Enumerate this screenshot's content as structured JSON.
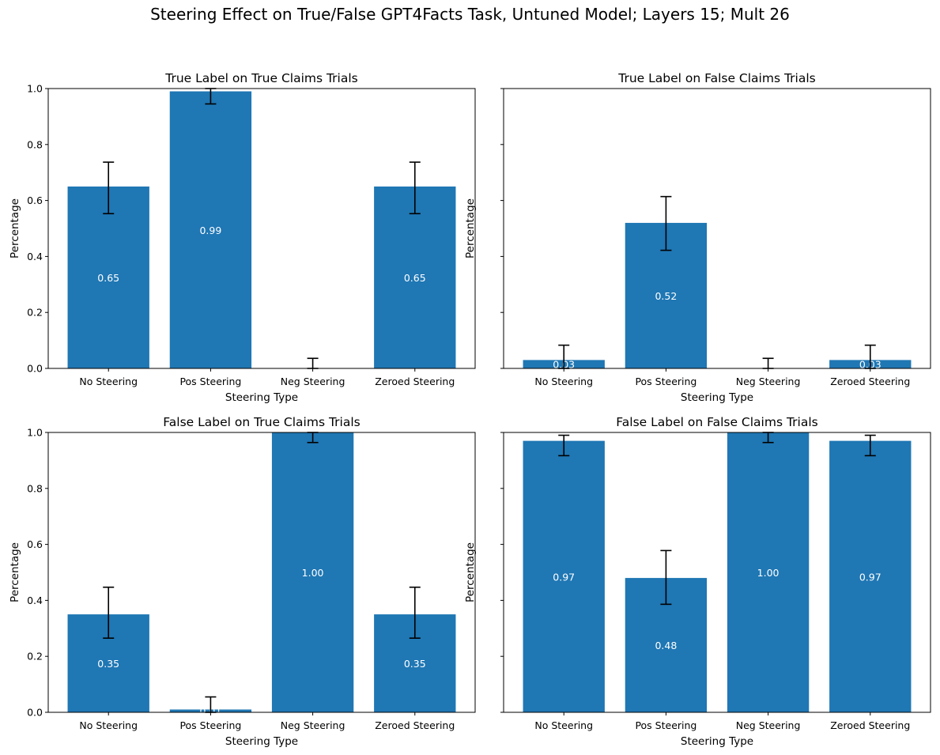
{
  "figure_title": "Steering Effect on True/False GPT4Facts Task, Untuned Model; Layers 15; Mult 26",
  "colors": {
    "bar": "#1f77b4",
    "error_bar": "#000000",
    "value_label": "#ffffff"
  },
  "chart_data": [
    {
      "type": "bar",
      "title": "True Label on True Claims Trials",
      "xlabel": "Steering Type",
      "ylabel": "Percentage",
      "ylim": [
        0,
        1
      ],
      "yticks": [
        "0.0",
        "0.2",
        "0.4",
        "0.6",
        "0.8",
        "1.0"
      ],
      "categories": [
        "No Steering",
        "Pos Steering",
        "Neg Steering",
        "Zeroed Steering"
      ],
      "values": [
        0.65,
        0.99,
        0.0,
        0.65
      ],
      "value_labels": [
        "0.65",
        "0.99",
        "0.00",
        "0.65"
      ],
      "error_low": [
        0.553,
        0.945,
        0.0,
        0.553
      ],
      "error_high": [
        0.737,
        1.0,
        0.036,
        0.737
      ]
    },
    {
      "type": "bar",
      "title": "True Label on False Claims Trials",
      "xlabel": "Steering Type",
      "ylabel": "Percentage",
      "ylim": [
        0,
        1
      ],
      "yticks": [],
      "categories": [
        "No Steering",
        "Pos Steering",
        "Neg Steering",
        "Zeroed Steering"
      ],
      "values": [
        0.03,
        0.52,
        0.0,
        0.03
      ],
      "value_labels": [
        "0.03",
        "0.52",
        "0.00",
        "0.03"
      ],
      "error_low": [
        0.0,
        0.422,
        0.0,
        0.0
      ],
      "error_high": [
        0.083,
        0.614,
        0.036,
        0.083
      ]
    },
    {
      "type": "bar",
      "title": "False Label on True Claims Trials",
      "xlabel": "Steering Type",
      "ylabel": "Percentage",
      "ylim": [
        0,
        1
      ],
      "yticks": [
        "0.0",
        "0.2",
        "0.4",
        "0.6",
        "0.8",
        "1.0"
      ],
      "categories": [
        "No Steering",
        "Pos Steering",
        "Neg Steering",
        "Zeroed Steering"
      ],
      "values": [
        0.35,
        0.01,
        1.0,
        0.35
      ],
      "value_labels": [
        "0.35",
        "0.01",
        "1.00",
        "0.35"
      ],
      "error_low": [
        0.265,
        0.0,
        0.964,
        0.265
      ],
      "error_high": [
        0.447,
        0.055,
        1.0,
        0.447
      ]
    },
    {
      "type": "bar",
      "title": "False Label on False Claims Trials",
      "xlabel": "Steering Type",
      "ylabel": "Percentage",
      "ylim": [
        0,
        1
      ],
      "yticks": [],
      "categories": [
        "No Steering",
        "Pos Steering",
        "Neg Steering",
        "Zeroed Steering"
      ],
      "values": [
        0.97,
        0.48,
        1.0,
        0.97
      ],
      "value_labels": [
        "0.97",
        "0.48",
        "1.00",
        "0.97"
      ],
      "error_low": [
        0.917,
        0.386,
        0.964,
        0.917
      ],
      "error_high": [
        0.99,
        0.578,
        1.0,
        0.99
      ]
    }
  ]
}
